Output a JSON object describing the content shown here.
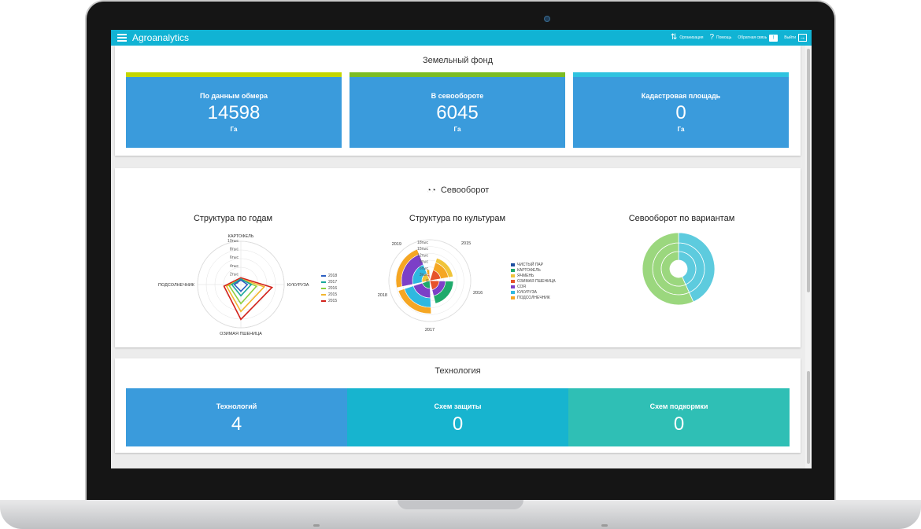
{
  "app": {
    "title": "Agroanalytics",
    "menu_icon": "hamburger-icon",
    "nav": {
      "organization": "Организация",
      "help": "Помощь",
      "feedback": "Обратная связь",
      "logout": "Выйти"
    }
  },
  "land_fund": {
    "title": "Земельный фонд",
    "cards": [
      {
        "label": "По данным обмера",
        "value": "14598",
        "unit": "Га",
        "color": "#3a9bdc",
        "accent": "#c4d600"
      },
      {
        "label": "В севообороте",
        "value": "6045",
        "unit": "Га",
        "color": "#3a9bdc",
        "accent": "#7cbc23"
      },
      {
        "label": "Кадастровая площадь",
        "value": "0",
        "unit": "Га",
        "color": "#3a9bdc",
        "accent": "#2fc3e0"
      }
    ]
  },
  "rotation": {
    "title": "Севооборот",
    "icon": "glasses-icon",
    "by_years": {
      "title": "Структура по годам",
      "axes": [
        "КАРТОФЕЛЬ",
        "КУКУРУЗА",
        "ОЗИМАЯ ПШЕНИЦА",
        "ПОДСОЛНЕЧНИК"
      ],
      "ticks": [
        "10тыс",
        "8тыс",
        "6тыс",
        "4тыс",
        "2тыс",
        "0"
      ],
      "legend": [
        {
          "name": "2018",
          "color": "#2b5fc2"
        },
        {
          "name": "2017",
          "color": "#19a89a"
        },
        {
          "name": "2016",
          "color": "#8ccf3f"
        },
        {
          "name": "2015",
          "color": "#f2b62f"
        },
        {
          "name": "2015",
          "color": "#d2221b"
        }
      ]
    },
    "by_crops": {
      "title": "Структура по культурам",
      "years": [
        "2015",
        "2016",
        "2017",
        "2018",
        "2019"
      ],
      "ticks": [
        "18тыс",
        "15тыс",
        "12тыс",
        "9тыс",
        "6тыс",
        "3тыс",
        "0"
      ],
      "legend": [
        {
          "name": "ЧИСТЫЙ ПАР",
          "color": "#1e4fa0"
        },
        {
          "name": "КАРТОФЕЛЬ",
          "color": "#1faa6c"
        },
        {
          "name": "ЯЧМЕНЬ",
          "color": "#f0c43a"
        },
        {
          "name": "ОЗИМАЯ ПШЕНИЦА",
          "color": "#e6532b"
        },
        {
          "name": "СОЯ",
          "color": "#7c3fc7"
        },
        {
          "name": "КУКУРУЗА",
          "color": "#2fb8e0"
        },
        {
          "name": "ПОДСОЛНЕЧНИК",
          "color": "#f5a623"
        }
      ]
    },
    "by_variants": {
      "title": "Севооборот по вариантам",
      "colors": [
        "#5dcbde",
        "#9bd77e"
      ]
    }
  },
  "technology": {
    "title": "Технология",
    "cards": [
      {
        "label": "Технологий",
        "value": "4",
        "color": "#3a9bdc"
      },
      {
        "label": "Схем защиты",
        "value": "0",
        "color": "#17b4cf"
      },
      {
        "label": "Схем подкормки",
        "value": "0",
        "color": "#2fbfb5"
      }
    ]
  }
}
